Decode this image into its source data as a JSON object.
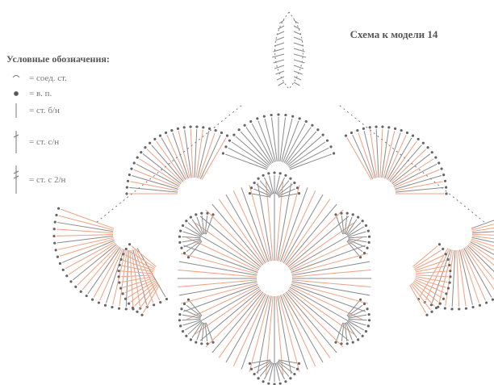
{
  "header": {
    "title": "Схема к модели 14"
  },
  "legend": {
    "title": "Условные обозначения:",
    "items": [
      "= соед. ст.",
      "= в. п.",
      "= ст. б/н",
      "= ст. с/н",
      "= ст. с 2/н"
    ]
  }
}
